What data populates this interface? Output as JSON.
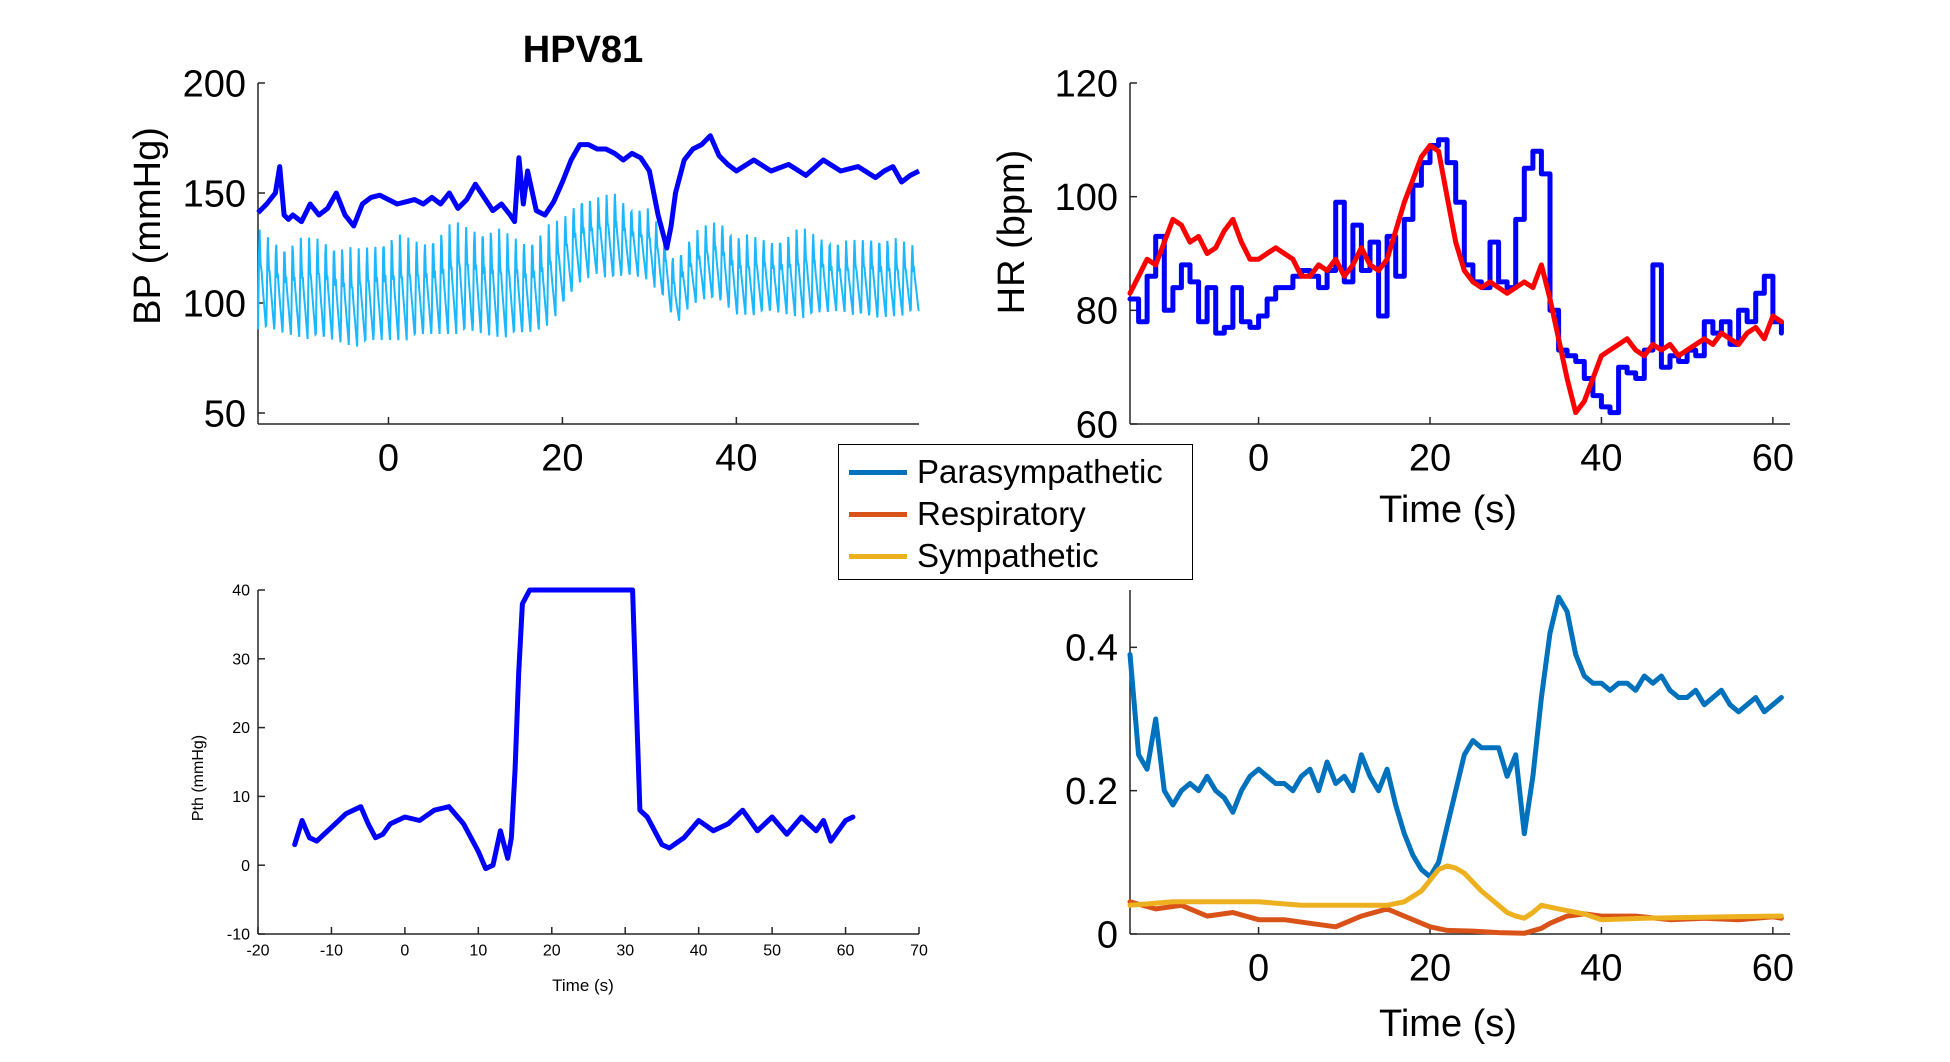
{
  "colors": {
    "bp_systolic": "#0000ff",
    "bp_waveform": "#1cb8ff",
    "hr_measured": "#0000ff",
    "hr_model": "#ff0000",
    "pth": "#0000ff",
    "parasympathetic": "#0072bd",
    "respiratory": "#d95319",
    "sympathetic": "#edb120"
  },
  "legend": {
    "items": [
      {
        "label": "Parasympathetic",
        "color": "#0072bd"
      },
      {
        "label": "Respiratory",
        "color": "#d95319"
      },
      {
        "label": "Sympathetic",
        "color": "#edb120"
      }
    ]
  },
  "chart_data": [
    {
      "type": "line",
      "title": "HPV81",
      "ylabel": "BP (mmHg)",
      "xlabel": "",
      "xlim": [
        -15,
        61
      ],
      "ylim": [
        45,
        200
      ],
      "xticks": [
        0,
        20,
        40
      ],
      "yticks": [
        50,
        100,
        150,
        200
      ],
      "series": [
        {
          "key": "systolic",
          "x": [
            -15,
            -14,
            -13,
            -12.5,
            -12,
            -11.5,
            -11,
            -10,
            -9,
            -8,
            -7,
            -6,
            -5,
            -4,
            -3,
            -2,
            -1,
            0,
            1,
            2,
            3,
            4,
            5,
            6,
            7,
            8,
            9,
            10,
            11,
            12,
            13,
            14,
            14.5,
            15,
            15.5,
            16,
            17,
            18,
            19,
            20,
            21,
            22,
            23,
            24,
            25,
            26,
            27,
            28,
            29,
            30,
            31,
            32,
            32.5,
            33,
            34,
            35,
            36,
            37,
            38,
            39,
            40,
            42,
            44,
            46,
            48,
            50,
            52,
            54,
            56,
            57,
            58,
            59,
            60,
            61
          ],
          "y": [
            141,
            145,
            150,
            162,
            140,
            138,
            140,
            137,
            145,
            140,
            143,
            150,
            140,
            135,
            145,
            148,
            149,
            147,
            145,
            146,
            147,
            145,
            148,
            145,
            150,
            143,
            147,
            154,
            148,
            142,
            145,
            140,
            137,
            166,
            145,
            160,
            142,
            140,
            146,
            155,
            165,
            172,
            172,
            170,
            170,
            168,
            165,
            168,
            166,
            160,
            140,
            125,
            135,
            150,
            165,
            170,
            172,
            176,
            167,
            163,
            160,
            165,
            160,
            163,
            158,
            165,
            160,
            162,
            157,
            160,
            162,
            155,
            158,
            160
          ]
        },
        {
          "key": "pulse_peaks",
          "x": [
            -15,
            -12,
            -8,
            -4,
            0,
            4,
            8,
            12,
            16,
            20,
            22,
            24,
            26,
            28,
            30,
            32,
            33,
            34,
            36,
            38,
            40,
            44,
            48,
            52,
            56,
            60
          ],
          "y": [
            135,
            128,
            132,
            125,
            132,
            130,
            138,
            135,
            130,
            140,
            150,
            148,
            152,
            145,
            143,
            130,
            120,
            128,
            135,
            140,
            132,
            130,
            135,
            128,
            132,
            128
          ]
        },
        {
          "key": "pulse_troughs",
          "x": [
            -15,
            -12,
            -8,
            -4,
            0,
            4,
            8,
            12,
            16,
            18,
            20,
            22,
            24,
            26,
            28,
            30,
            32,
            33,
            34,
            36,
            38,
            40,
            44,
            48,
            52,
            56,
            60
          ],
          "y": [
            88,
            85,
            83,
            80,
            82,
            84,
            86,
            84,
            85,
            88,
            98,
            108,
            113,
            110,
            112,
            110,
            100,
            88,
            95,
            102,
            100,
            94,
            95,
            93,
            96,
            92,
            95
          ]
        }
      ]
    },
    {
      "type": "line",
      "title": "",
      "ylabel": "HR (bpm)",
      "xlabel": "Time (s)",
      "xlim": [
        -15,
        62
      ],
      "ylim": [
        60,
        120
      ],
      "xticks": [
        0,
        20,
        40,
        60
      ],
      "yticks": [
        60,
        80,
        100,
        120
      ],
      "series": [
        {
          "key": "measured",
          "color": "#0000ff",
          "x": [
            -15,
            -14,
            -13,
            -12,
            -11,
            -10,
            -9,
            -8,
            -7,
            -6,
            -5,
            -4,
            -3,
            -2,
            -1,
            0,
            1,
            2,
            3,
            4,
            5,
            6,
            7,
            8,
            9,
            10,
            11,
            12,
            13,
            14,
            15,
            16,
            17,
            18,
            19,
            20,
            21,
            22,
            23,
            24,
            25,
            26,
            27,
            28,
            29,
            30,
            31,
            32,
            33,
            34,
            35,
            36,
            37,
            38,
            39,
            40,
            41,
            42,
            43,
            44,
            45,
            46,
            47,
            48,
            49,
            50,
            51,
            52,
            53,
            54,
            55,
            56,
            57,
            58,
            59,
            60,
            61
          ],
          "y": [
            82,
            78,
            86,
            93,
            80,
            84,
            88,
            85,
            78,
            84,
            76,
            77,
            84,
            78,
            77,
            79,
            82,
            84,
            84,
            86,
            87,
            86,
            84,
            87,
            99,
            85,
            95,
            87,
            92,
            79,
            93,
            86,
            96,
            102,
            106,
            109,
            110,
            106,
            99,
            88,
            85,
            84,
            92,
            85,
            84,
            96,
            105,
            108,
            104,
            80,
            73,
            72,
            71,
            68,
            65,
            63,
            62,
            70,
            69,
            68,
            73,
            88,
            70,
            72,
            71,
            73,
            72,
            78,
            76,
            78,
            74,
            80,
            78,
            83,
            86,
            78,
            76
          ]
        },
        {
          "key": "model",
          "color": "#ff0000",
          "x": [
            -15,
            -14,
            -13,
            -12,
            -11,
            -10,
            -9,
            -8,
            -7,
            -6,
            -5,
            -4,
            -3,
            -2,
            -1,
            0,
            1,
            2,
            3,
            4,
            5,
            6,
            7,
            8,
            9,
            10,
            11,
            12,
            13,
            14,
            15,
            16,
            17,
            18,
            19,
            20,
            21,
            22,
            23,
            24,
            25,
            26,
            27,
            28,
            29,
            30,
            31,
            32,
            33,
            34,
            35,
            36,
            37,
            38,
            39,
            40,
            41,
            42,
            43,
            44,
            45,
            46,
            47,
            48,
            49,
            50,
            51,
            52,
            53,
            54,
            55,
            56,
            57,
            58,
            59,
            60,
            61
          ],
          "y": [
            83,
            86,
            89,
            88,
            92,
            96,
            95,
            92,
            93,
            90,
            91,
            94,
            96,
            92,
            89,
            89,
            90,
            91,
            90,
            89,
            86,
            86,
            88,
            87,
            89,
            86,
            88,
            91,
            88,
            87,
            89,
            94,
            99,
            103,
            107,
            109,
            108,
            100,
            92,
            87,
            85,
            84,
            85,
            84,
            83,
            84,
            85,
            84,
            88,
            82,
            75,
            68,
            62,
            64,
            68,
            72,
            73,
            74,
            75,
            73,
            72,
            74,
            73,
            74,
            72,
            73,
            74,
            75,
            74,
            76,
            75,
            74,
            76,
            77,
            75,
            79,
            78
          ]
        }
      ]
    },
    {
      "type": "line",
      "title": "",
      "ylabel": "Pth (mmHg)",
      "xlabel": "Time (s)",
      "xlim": [
        -20,
        70
      ],
      "ylim": [
        -10,
        40
      ],
      "xticks": [
        -20,
        -10,
        0,
        10,
        20,
        30,
        40,
        50,
        60,
        70
      ],
      "yticks": [
        -10,
        0,
        10,
        20,
        30,
        40
      ],
      "series": [
        {
          "key": "pth",
          "color": "#0000ff",
          "x": [
            -15,
            -14,
            -13,
            -12,
            -11,
            -10,
            -8,
            -6,
            -5,
            -4,
            -3,
            -2,
            0,
            2,
            4,
            6,
            8,
            10,
            11,
            12,
            13,
            14,
            14.5,
            15,
            15.5,
            16,
            17,
            18,
            20,
            24,
            28,
            30,
            31,
            31.5,
            32,
            33,
            34,
            35,
            36,
            38,
            40,
            42,
            44,
            46,
            48,
            50,
            52,
            54,
            56,
            57,
            58,
            59,
            60,
            61
          ],
          "y": [
            3,
            6.5,
            4,
            3.5,
            4.5,
            5.5,
            7.5,
            8.5,
            6,
            4,
            4.5,
            6,
            7,
            6.5,
            8,
            8.5,
            6,
            2,
            -0.5,
            0,
            5,
            1,
            4,
            14,
            28,
            38,
            40,
            40,
            40,
            40,
            40,
            40,
            40,
            24,
            8,
            7,
            5,
            3,
            2.5,
            4,
            6.5,
            5,
            6,
            8,
            5,
            7,
            4.5,
            7,
            5,
            6.5,
            3.5,
            5,
            6.5,
            7
          ]
        }
      ]
    },
    {
      "type": "line",
      "title": "",
      "ylabel": "",
      "xlabel": "Time (s)",
      "xlim": [
        -15,
        62
      ],
      "ylim": [
        0,
        0.48
      ],
      "xticks": [
        0,
        20,
        40,
        60
      ],
      "yticks": [
        0,
        0.2,
        0.4
      ],
      "series": [
        {
          "name": "Parasympathetic",
          "color": "#0072bd",
          "x": [
            -15,
            -14,
            -13,
            -12,
            -11,
            -10,
            -9,
            -8,
            -7,
            -6,
            -5,
            -4,
            -3,
            -2,
            -1,
            0,
            1,
            2,
            3,
            4,
            5,
            6,
            7,
            8,
            9,
            10,
            11,
            12,
            13,
            14,
            15,
            16,
            17,
            18,
            19,
            20,
            21,
            22,
            23,
            24,
            25,
            26,
            27,
            28,
            29,
            30,
            31,
            32,
            33,
            34,
            35,
            36,
            37,
            38,
            39,
            40,
            41,
            42,
            43,
            44,
            45,
            46,
            47,
            48,
            49,
            50,
            51,
            52,
            53,
            54,
            55,
            56,
            57,
            58,
            59,
            60,
            61
          ],
          "y": [
            0.39,
            0.25,
            0.23,
            0.3,
            0.2,
            0.18,
            0.2,
            0.21,
            0.2,
            0.22,
            0.2,
            0.19,
            0.17,
            0.2,
            0.22,
            0.23,
            0.22,
            0.21,
            0.21,
            0.2,
            0.22,
            0.23,
            0.2,
            0.24,
            0.21,
            0.22,
            0.2,
            0.25,
            0.22,
            0.2,
            0.23,
            0.18,
            0.14,
            0.11,
            0.09,
            0.08,
            0.1,
            0.15,
            0.2,
            0.25,
            0.27,
            0.26,
            0.26,
            0.26,
            0.22,
            0.25,
            0.14,
            0.22,
            0.33,
            0.42,
            0.47,
            0.45,
            0.39,
            0.36,
            0.35,
            0.35,
            0.34,
            0.35,
            0.35,
            0.34,
            0.36,
            0.35,
            0.36,
            0.34,
            0.33,
            0.33,
            0.34,
            0.32,
            0.33,
            0.34,
            0.32,
            0.31,
            0.32,
            0.33,
            0.31,
            0.32,
            0.33
          ]
        },
        {
          "name": "Respiratory",
          "color": "#d95319",
          "x": [
            -15,
            -12,
            -9,
            -6,
            -3,
            0,
            3,
            6,
            9,
            12,
            15,
            18,
            20,
            22,
            25,
            28,
            31,
            33,
            34,
            36,
            38,
            40,
            44,
            48,
            52,
            56,
            60,
            61
          ],
          "y": [
            0.045,
            0.035,
            0.04,
            0.025,
            0.03,
            0.02,
            0.02,
            0.015,
            0.01,
            0.025,
            0.035,
            0.02,
            0.01,
            0.005,
            0.004,
            0.002,
            0.001,
            0.008,
            0.015,
            0.025,
            0.028,
            0.025,
            0.025,
            0.02,
            0.022,
            0.02,
            0.024,
            0.022
          ]
        },
        {
          "name": "Sympathetic",
          "color": "#edb120",
          "x": [
            -15,
            -10,
            -5,
            -2,
            0,
            5,
            10,
            15,
            17,
            19,
            20,
            21,
            22,
            23,
            24,
            26,
            28,
            29,
            30,
            31,
            32,
            33,
            35,
            38,
            40,
            45,
            50,
            55,
            60,
            61
          ],
          "y": [
            0.04,
            0.045,
            0.045,
            0.045,
            0.045,
            0.04,
            0.04,
            0.04,
            0.045,
            0.06,
            0.075,
            0.09,
            0.095,
            0.092,
            0.085,
            0.06,
            0.04,
            0.03,
            0.025,
            0.022,
            0.03,
            0.04,
            0.035,
            0.028,
            0.02,
            0.022,
            0.023,
            0.024,
            0.025,
            0.025
          ]
        }
      ]
    }
  ]
}
